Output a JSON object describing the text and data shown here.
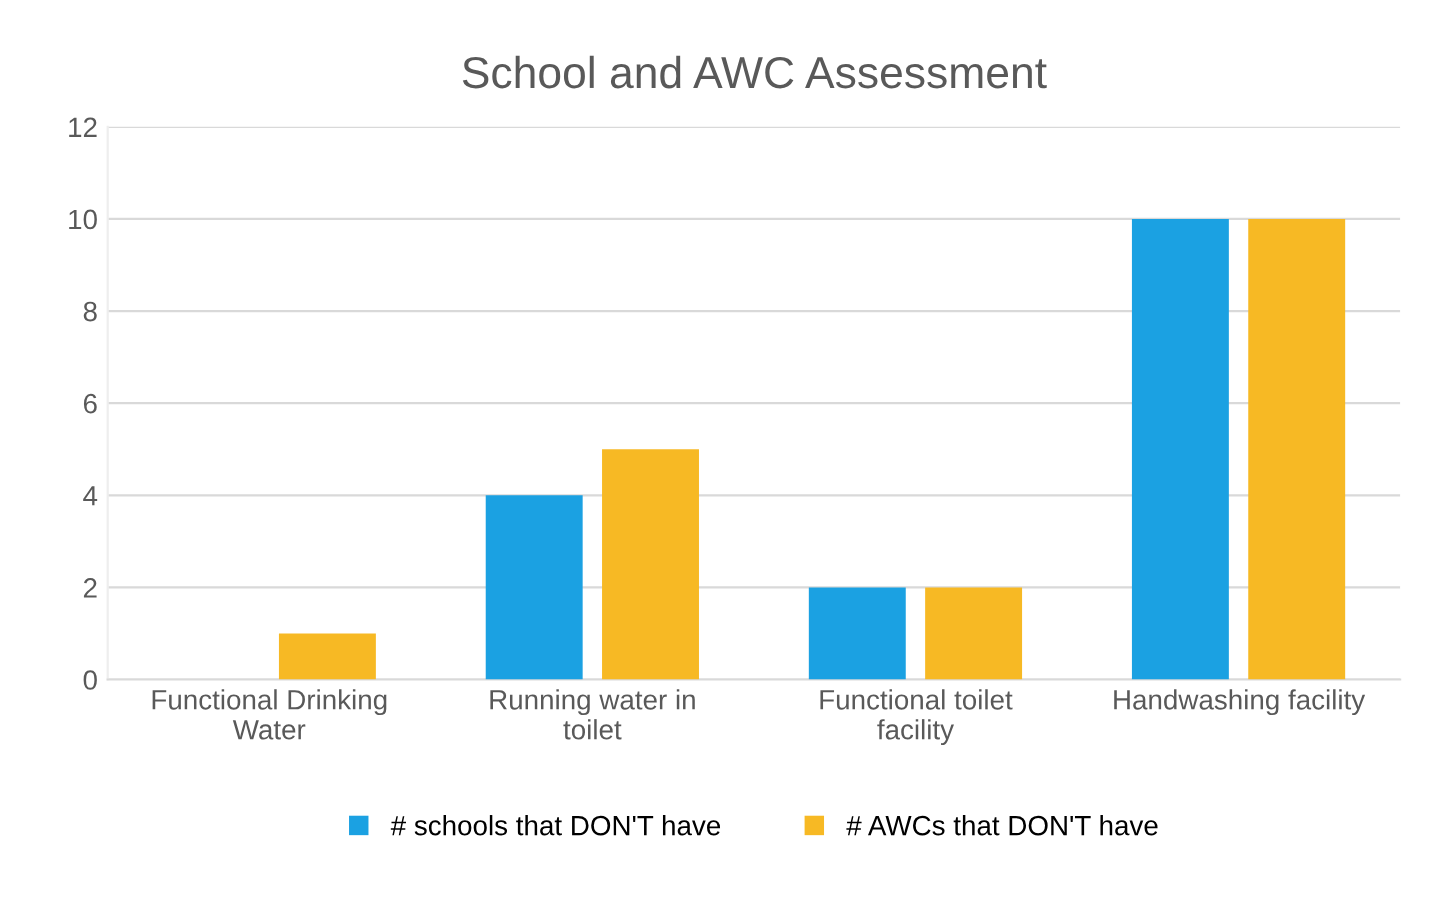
{
  "chart_data": {
    "type": "bar",
    "title": "School and AWC Assessment",
    "categories": [
      "Functional Drinking Water",
      "Running water in toilet",
      "Functional toilet facility",
      "Handwashing facility"
    ],
    "series": [
      {
        "name": "# schools that DON'T have",
        "color": "#1ba1e2",
        "values": [
          0,
          4,
          2,
          10
        ]
      },
      {
        "name": "# AWCs that DON'T have",
        "color": "#f7b924",
        "values": [
          1,
          5,
          2,
          10
        ]
      }
    ],
    "ylim": [
      0,
      12
    ],
    "yticks": [
      0,
      2,
      4,
      6,
      8,
      10,
      12
    ],
    "grid": "y",
    "legend": "bottom"
  }
}
